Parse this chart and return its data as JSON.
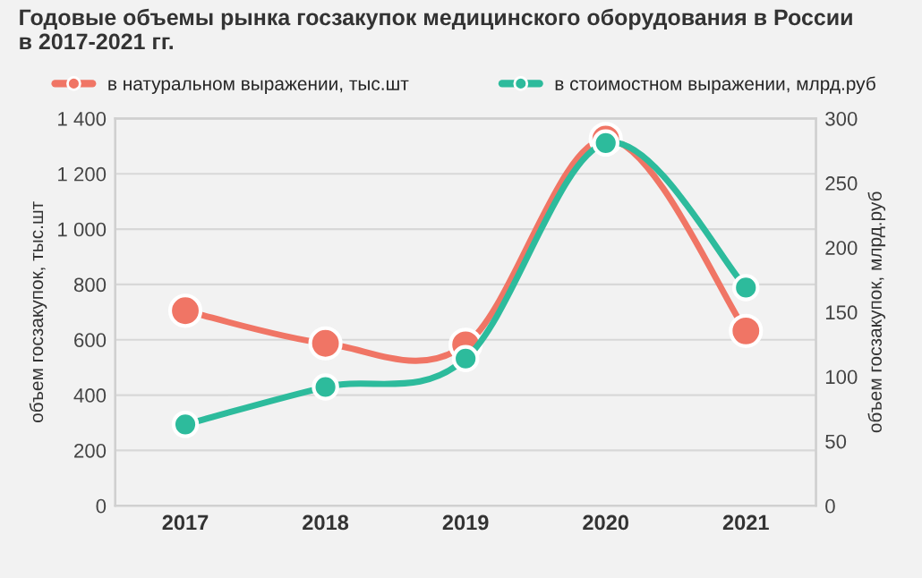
{
  "chart_data": {
    "type": "line",
    "title": "Годовые объемы рынка госзакупок медицинского оборудования в России\nв 2017-2021 гг.",
    "categories": [
      "2017",
      "2018",
      "2019",
      "2020",
      "2021"
    ],
    "series": [
      {
        "name": "в натуральном выражении, тыс.шт",
        "color": "#f07565",
        "values": [
          705,
          587,
          582,
          1326,
          632
        ]
      },
      {
        "name": "в стоимостном выражении, млрд.руб",
        "color": "#2dbb9c",
        "axis": "y2",
        "values": [
          63,
          92,
          114,
          281,
          169
        ]
      }
    ],
    "ylabel": "объем госзакупок, тыс.шт",
    "y2label": "объем госзакупок, млрд.руб",
    "ylim": [
      0,
      1400
    ],
    "yticks": [
      0,
      200,
      400,
      600,
      800,
      {
        "value": 1000,
        "label": "1 000"
      },
      {
        "value": 1200,
        "label": "1 200"
      },
      {
        "value": 1400,
        "label": "1 400"
      }
    ],
    "y2lim": [
      0,
      300
    ],
    "y2ticks": [
      0,
      50,
      100,
      150,
      200,
      250,
      300
    ],
    "grid": "y",
    "legend": "top",
    "marker": "circle",
    "line_style": "solid"
  }
}
